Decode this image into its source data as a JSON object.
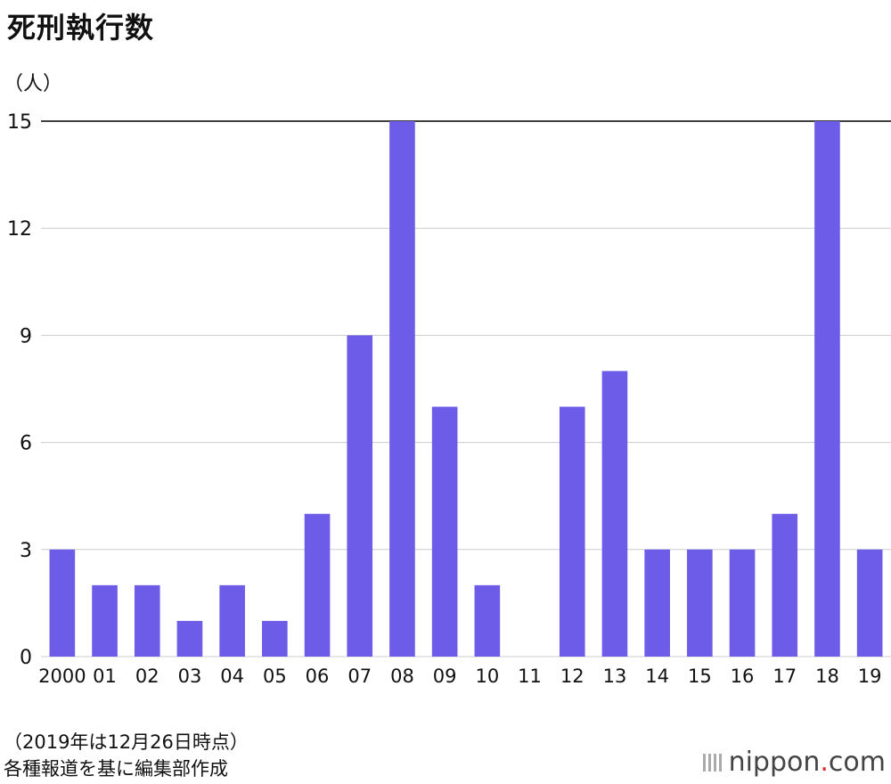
{
  "title": "死刑執行数",
  "unit": "（人）",
  "footnote": {
    "line1": "（2019年は12月26日時点）",
    "line2": "各種報道を基に編集部作成"
  },
  "logo": {
    "name": "nippon",
    "dot": ".",
    "tld": "com"
  },
  "colors": {
    "bar": "#6c5ce7",
    "grid": "#cccccc",
    "topline": "#000000"
  },
  "chart_data": {
    "type": "bar",
    "title": "死刑執行数",
    "ylabel": "（人）",
    "categories": [
      "2000",
      "01",
      "02",
      "03",
      "04",
      "05",
      "06",
      "07",
      "08",
      "09",
      "10",
      "11",
      "12",
      "13",
      "14",
      "15",
      "16",
      "17",
      "18",
      "19"
    ],
    "values": [
      3,
      2,
      2,
      1,
      2,
      1,
      4,
      9,
      15,
      7,
      2,
      0,
      7,
      8,
      3,
      3,
      3,
      4,
      15,
      3
    ],
    "yticks": [
      0,
      3,
      6,
      9,
      12,
      15
    ],
    "ylim": [
      0,
      15
    ],
    "grid": true
  }
}
